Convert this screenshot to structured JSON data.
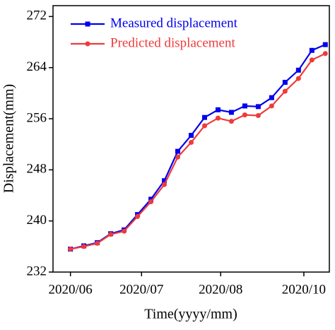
{
  "chart_data": {
    "type": "line",
    "x_label": "Time(yyyy/mm)",
    "y_label": "Displacement(mm)",
    "x": [
      0,
      1,
      2,
      3,
      4,
      5,
      6,
      7,
      8,
      9,
      10,
      11,
      12,
      13,
      14,
      15,
      16,
      17,
      18,
      19
    ],
    "series": [
      {
        "name": "Measured displacement",
        "color": "#0000ee",
        "marker": "square",
        "values": [
          235.6,
          236.1,
          236.6,
          238.0,
          238.6,
          241.0,
          243.4,
          246.3,
          250.9,
          253.4,
          256.2,
          257.4,
          257.0,
          258.0,
          257.9,
          259.3,
          261.7,
          263.6,
          266.7,
          267.6
        ]
      },
      {
        "name": "Predicted displacement",
        "color": "#ee3b3b",
        "marker": "circle",
        "values": [
          235.6,
          236.0,
          236.5,
          237.9,
          238.4,
          240.7,
          243.0,
          245.7,
          250.0,
          252.3,
          254.9,
          256.1,
          255.6,
          256.6,
          256.5,
          258.0,
          260.3,
          262.3,
          265.2,
          266.2
        ]
      }
    ],
    "xlim": [
      -1.3,
      19.3
    ],
    "xticks": [
      {
        "value": 0,
        "label": "2020/06"
      },
      {
        "value": 5.3,
        "label": "2020/07"
      },
      {
        "value": 11.2,
        "label": "2020/08"
      },
      {
        "value": 17.4,
        "label": "2020/10"
      }
    ],
    "ylim": [
      232,
      273.7
    ],
    "yticks": [
      232,
      240,
      248,
      256,
      264,
      272
    ],
    "legend": "upper left",
    "grid": false
  }
}
